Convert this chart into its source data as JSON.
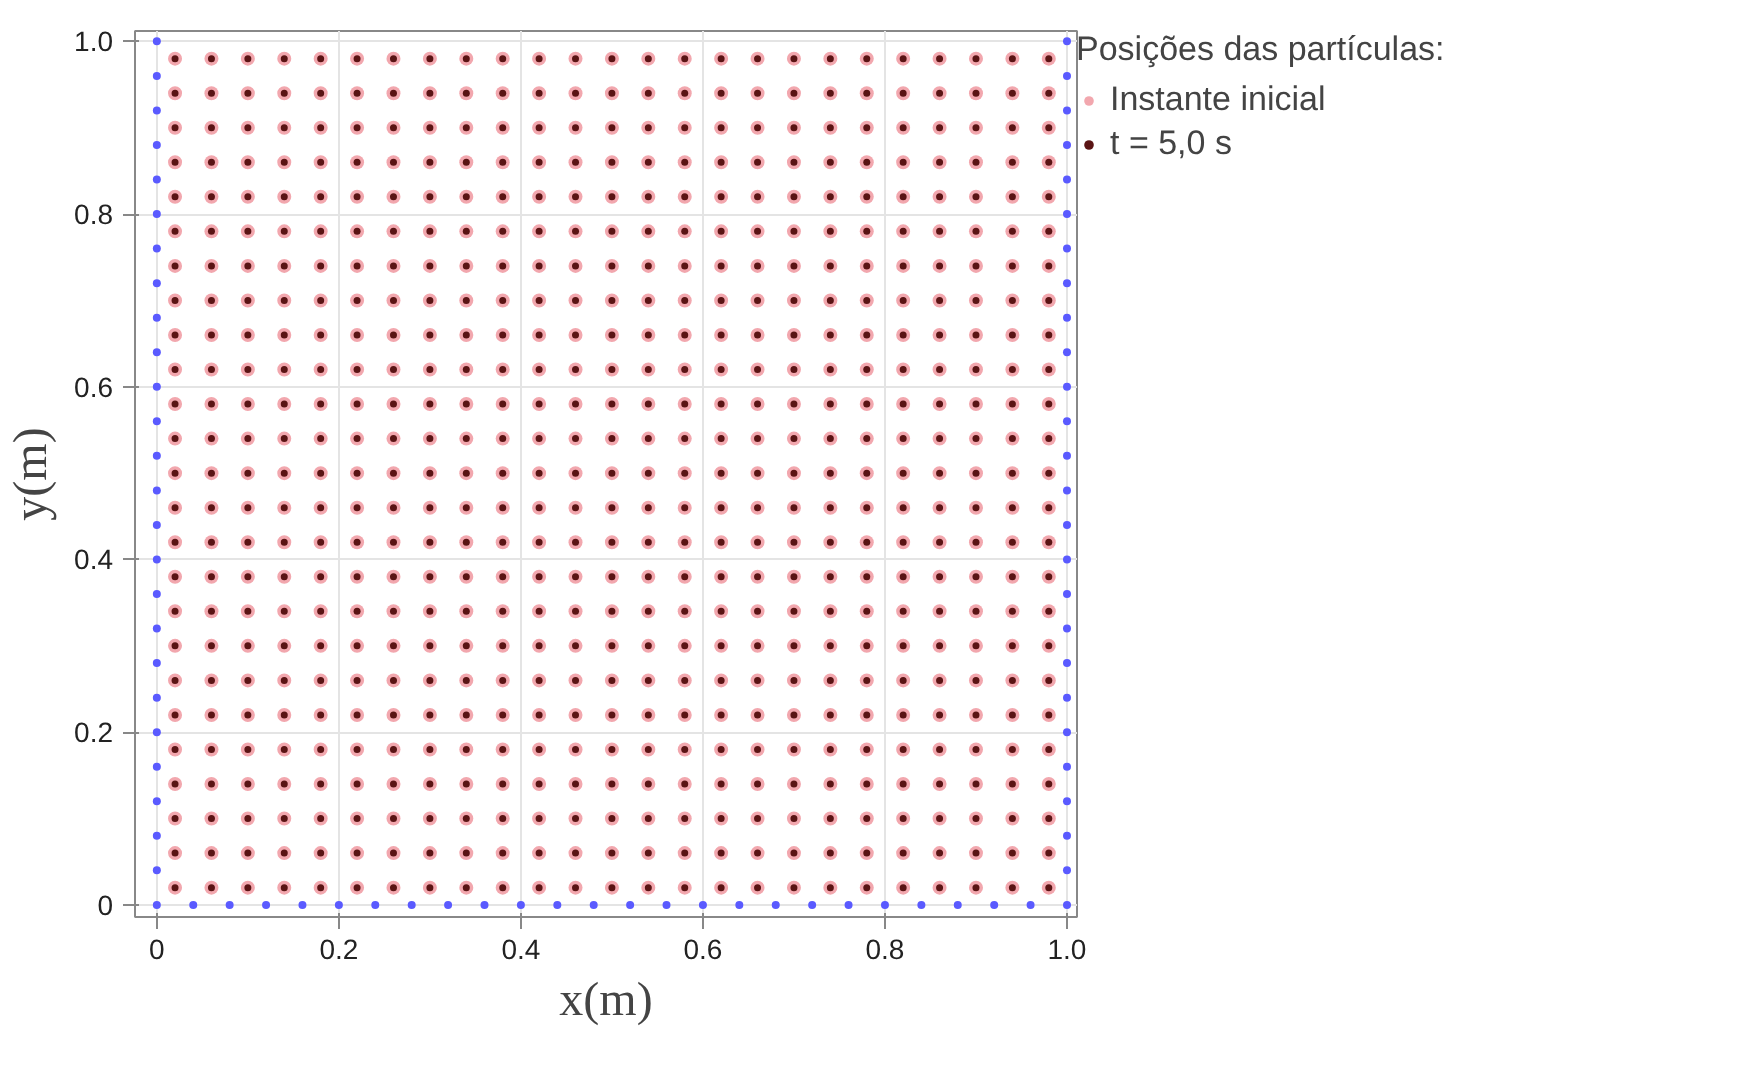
{
  "chart_data": {
    "type": "scatter",
    "xlabel": "x(m)",
    "ylabel": "y(m)",
    "legend_title": "Posições das partículas:",
    "legend": "top right",
    "grid": true,
    "marker": "circle",
    "xlim": [
      -0.024,
      1.011
    ],
    "ylim": [
      -0.014,
      1.012
    ],
    "xticks": [
      0,
      0.2,
      0.4,
      0.6,
      0.8,
      {
        "value": 1,
        "label": "1.0"
      }
    ],
    "yticks": [
      0,
      0.2,
      0.4,
      0.6,
      0.8,
      {
        "value": 1,
        "label": "1.0"
      }
    ],
    "x": [
      0.02,
      0.06,
      0.1,
      0.14,
      0.18,
      0.22,
      0.26,
      0.3,
      0.34,
      0.38,
      0.42,
      0.46,
      0.5,
      0.54,
      0.58,
      0.62,
      0.66,
      0.7,
      0.74,
      0.78,
      0.82,
      0.86,
      0.9,
      0.94,
      0.98,
      0.02,
      0.06,
      0.1,
      0.14,
      0.18,
      0.22,
      0.26,
      0.3,
      0.34,
      0.38,
      0.42,
      0.46,
      0.5,
      0.54,
      0.58,
      0.62,
      0.66,
      0.7,
      0.74,
      0.78,
      0.82,
      0.86,
      0.9,
      0.94,
      0.98,
      0.02,
      0.06,
      0.1,
      0.14,
      0.18,
      0.22,
      0.26,
      0.3,
      0.34,
      0.38,
      0.42,
      0.46,
      0.5,
      0.54,
      0.58,
      0.62,
      0.66,
      0.7,
      0.74,
      0.78,
      0.82,
      0.86,
      0.9,
      0.94,
      0.98,
      0.02,
      0.06,
      0.1,
      0.14,
      0.18,
      0.22,
      0.26,
      0.3,
      0.34,
      0.38,
      0.42,
      0.46,
      0.5,
      0.54,
      0.58,
      0.62,
      0.66,
      0.7,
      0.74,
      0.78,
      0.82,
      0.86,
      0.9,
      0.94,
      0.98,
      0.02,
      0.06,
      0.1,
      0.14,
      0.18,
      0.22,
      0.26,
      0.3,
      0.34,
      0.38,
      0.42,
      0.46,
      0.5,
      0.54,
      0.58,
      0.62,
      0.66,
      0.7,
      0.74,
      0.78,
      0.82,
      0.86,
      0.9,
      0.94,
      0.98,
      0.02,
      0.06,
      0.1,
      0.14,
      0.18,
      0.22,
      0.26,
      0.3,
      0.34,
      0.38,
      0.42,
      0.46,
      0.5,
      0.54,
      0.58,
      0.62,
      0.66,
      0.7,
      0.74,
      0.78,
      0.82,
      0.86,
      0.9,
      0.94,
      0.98,
      0.02,
      0.06,
      0.1,
      0.14,
      0.18,
      0.22,
      0.26,
      0.3,
      0.34,
      0.38,
      0.42,
      0.46,
      0.5,
      0.54,
      0.58,
      0.62,
      0.66,
      0.7,
      0.74,
      0.78,
      0.82,
      0.86,
      0.9,
      0.94,
      0.98,
      0.02,
      0.06,
      0.1,
      0.14,
      0.18,
      0.22,
      0.26,
      0.3,
      0.34,
      0.38,
      0.42,
      0.46,
      0.5,
      0.54,
      0.58,
      0.62,
      0.66,
      0.7,
      0.74,
      0.78,
      0.82,
      0.86,
      0.9,
      0.94,
      0.98,
      0.02,
      0.06,
      0.1,
      0.14,
      0.18,
      0.22,
      0.26,
      0.3,
      0.34,
      0.38,
      0.42,
      0.46,
      0.5,
      0.54,
      0.58,
      0.62,
      0.66,
      0.7,
      0.74,
      0.78,
      0.82,
      0.86,
      0.9,
      0.94,
      0.98,
      0.02,
      0.06,
      0.1,
      0.14,
      0.18,
      0.22,
      0.26,
      0.3,
      0.34,
      0.38,
      0.42,
      0.46,
      0.5,
      0.54,
      0.58,
      0.62,
      0.66,
      0.7,
      0.74,
      0.78,
      0.82,
      0.86,
      0.9,
      0.94,
      0.98,
      0.02,
      0.06,
      0.1,
      0.14,
      0.18,
      0.22,
      0.26,
      0.3,
      0.34,
      0.38,
      0.42,
      0.46,
      0.5,
      0.54,
      0.58,
      0.62,
      0.66,
      0.7,
      0.74,
      0.78,
      0.82,
      0.86,
      0.9,
      0.94,
      0.98,
      0.02,
      0.06,
      0.1,
      0.14,
      0.18,
      0.22,
      0.26,
      0.3,
      0.34,
      0.38,
      0.42,
      0.46,
      0.5,
      0.54,
      0.58,
      0.62,
      0.66,
      0.7,
      0.74,
      0.78,
      0.82,
      0.86,
      0.9,
      0.94,
      0.98,
      0.02,
      0.06,
      0.1,
      0.14,
      0.18,
      0.22,
      0.26,
      0.3,
      0.34,
      0.38,
      0.42,
      0.46,
      0.5,
      0.54,
      0.58,
      0.62,
      0.66,
      0.7,
      0.74,
      0.78,
      0.82,
      0.86,
      0.9,
      0.94,
      0.98,
      0.02,
      0.06,
      0.1,
      0.14,
      0.18,
      0.22,
      0.26,
      0.3,
      0.34,
      0.38,
      0.42,
      0.46,
      0.5,
      0.54,
      0.58,
      0.62,
      0.66,
      0.7,
      0.74,
      0.78,
      0.82,
      0.86,
      0.9,
      0.94,
      0.98,
      0.02,
      0.06,
      0.1,
      0.14,
      0.18,
      0.22,
      0.26,
      0.3,
      0.34,
      0.38,
      0.42,
      0.46,
      0.5,
      0.54,
      0.58,
      0.62,
      0.66,
      0.7,
      0.74,
      0.78,
      0.82,
      0.86,
      0.9,
      0.94,
      0.98,
      0.02,
      0.06,
      0.1,
      0.14,
      0.18,
      0.22,
      0.26,
      0.3,
      0.34,
      0.38,
      0.42,
      0.46,
      0.5,
      0.54,
      0.58,
      0.62,
      0.66,
      0.7,
      0.74,
      0.78,
      0.82,
      0.86,
      0.9,
      0.94,
      0.98,
      0.02,
      0.06,
      0.1,
      0.14,
      0.18,
      0.22,
      0.26,
      0.3,
      0.34,
      0.38,
      0.42,
      0.46,
      0.5,
      0.54,
      0.58,
      0.62,
      0.66,
      0.7,
      0.74,
      0.78,
      0.82,
      0.86,
      0.9,
      0.94,
      0.98,
      0.02,
      0.06,
      0.1,
      0.14,
      0.18,
      0.22,
      0.26,
      0.3,
      0.34,
      0.38,
      0.42,
      0.46,
      0.5,
      0.54,
      0.58,
      0.62,
      0.66,
      0.7,
      0.74,
      0.78,
      0.82,
      0.86,
      0.9,
      0.94,
      0.98,
      0.02,
      0.06,
      0.1,
      0.14,
      0.18,
      0.22,
      0.26,
      0.3,
      0.34,
      0.38,
      0.42,
      0.46,
      0.5,
      0.54,
      0.58,
      0.62,
      0.66,
      0.7,
      0.74,
      0.78,
      0.82,
      0.86,
      0.9,
      0.94,
      0.98,
      0.02,
      0.06,
      0.1,
      0.14,
      0.18,
      0.22,
      0.26,
      0.3,
      0.34,
      0.38,
      0.42,
      0.46,
      0.5,
      0.54,
      0.58,
      0.62,
      0.66,
      0.7,
      0.74,
      0.78,
      0.82,
      0.86,
      0.9,
      0.94,
      0.98,
      0.02,
      0.06,
      0.1,
      0.14,
      0.18,
      0.22,
      0.26,
      0.3,
      0.34,
      0.38,
      0.42,
      0.46,
      0.5,
      0.54,
      0.58,
      0.62,
      0.66,
      0.7,
      0.74,
      0.78,
      0.82,
      0.86,
      0.9,
      0.94,
      0.98,
      0.02,
      0.06,
      0.1,
      0.14,
      0.18,
      0.22,
      0.26,
      0.3,
      0.34,
      0.38,
      0.42,
      0.46,
      0.5,
      0.54,
      0.58,
      0.62,
      0.66,
      0.7,
      0.74,
      0.78,
      0.82,
      0.86,
      0.9,
      0.94,
      0.98,
      0.02,
      0.06,
      0.1,
      0.14,
      0.18,
      0.22,
      0.26,
      0.3,
      0.34,
      0.38,
      0.42,
      0.46,
      0.5,
      0.54,
      0.58,
      0.62,
      0.66,
      0.7,
      0.74,
      0.78,
      0.82,
      0.86,
      0.9,
      0.94,
      0.98,
      0.02,
      0.06,
      0.1,
      0.14,
      0.18,
      0.22,
      0.26,
      0.3,
      0.34,
      0.38,
      0.42,
      0.46,
      0.5,
      0.54,
      0.58,
      0.62,
      0.66,
      0.7,
      0.74,
      0.78,
      0.82,
      0.86,
      0.9,
      0.94,
      0.98,
      0.02,
      0.06,
      0.1,
      0.14,
      0.18,
      0.22,
      0.26,
      0.3,
      0.34,
      0.38,
      0.42,
      0.46,
      0.5,
      0.54,
      0.58,
      0.62,
      0.66,
      0.7,
      0.74,
      0.78,
      0.82,
      0.86,
      0.9,
      0.94,
      0.98
    ],
    "series": [
      {
        "name": "Instante inicial",
        "color": "#f2a7ae",
        "values": [
          0.02,
          0.02,
          0.02,
          0.02,
          0.02,
          0.02,
          0.02,
          0.02,
          0.02,
          0.02,
          0.02,
          0.02,
          0.02,
          0.02,
          0.02,
          0.02,
          0.02,
          0.02,
          0.02,
          0.02,
          0.02,
          0.02,
          0.02,
          0.02,
          0.02,
          0.06,
          0.06,
          0.06,
          0.06,
          0.06,
          0.06,
          0.06,
          0.06,
          0.06,
          0.06,
          0.06,
          0.06,
          0.06,
          0.06,
          0.06,
          0.06,
          0.06,
          0.06,
          0.06,
          0.06,
          0.06,
          0.06,
          0.06,
          0.06,
          0.06,
          0.1,
          0.1,
          0.1,
          0.1,
          0.1,
          0.1,
          0.1,
          0.1,
          0.1,
          0.1,
          0.1,
          0.1,
          0.1,
          0.1,
          0.1,
          0.1,
          0.1,
          0.1,
          0.1,
          0.1,
          0.1,
          0.1,
          0.1,
          0.1,
          0.1,
          0.14,
          0.14,
          0.14,
          0.14,
          0.14,
          0.14,
          0.14,
          0.14,
          0.14,
          0.14,
          0.14,
          0.14,
          0.14,
          0.14,
          0.14,
          0.14,
          0.14,
          0.14,
          0.14,
          0.14,
          0.14,
          0.14,
          0.14,
          0.14,
          0.14,
          0.18,
          0.18,
          0.18,
          0.18,
          0.18,
          0.18,
          0.18,
          0.18,
          0.18,
          0.18,
          0.18,
          0.18,
          0.18,
          0.18,
          0.18,
          0.18,
          0.18,
          0.18,
          0.18,
          0.18,
          0.18,
          0.18,
          0.18,
          0.18,
          0.18,
          0.22,
          0.22,
          0.22,
          0.22,
          0.22,
          0.22,
          0.22,
          0.22,
          0.22,
          0.22,
          0.22,
          0.22,
          0.22,
          0.22,
          0.22,
          0.22,
          0.22,
          0.22,
          0.22,
          0.22,
          0.22,
          0.22,
          0.22,
          0.22,
          0.22,
          0.26,
          0.26,
          0.26,
          0.26,
          0.26,
          0.26,
          0.26,
          0.26,
          0.26,
          0.26,
          0.26,
          0.26,
          0.26,
          0.26,
          0.26,
          0.26,
          0.26,
          0.26,
          0.26,
          0.26,
          0.26,
          0.26,
          0.26,
          0.26,
          0.26,
          0.3,
          0.3,
          0.3,
          0.3,
          0.3,
          0.3,
          0.3,
          0.3,
          0.3,
          0.3,
          0.3,
          0.3,
          0.3,
          0.3,
          0.3,
          0.3,
          0.3,
          0.3,
          0.3,
          0.3,
          0.3,
          0.3,
          0.3,
          0.3,
          0.3,
          0.34,
          0.34,
          0.34,
          0.34,
          0.34,
          0.34,
          0.34,
          0.34,
          0.34,
          0.34,
          0.34,
          0.34,
          0.34,
          0.34,
          0.34,
          0.34,
          0.34,
          0.34,
          0.34,
          0.34,
          0.34,
          0.34,
          0.34,
          0.34,
          0.34,
          0.38,
          0.38,
          0.38,
          0.38,
          0.38,
          0.38,
          0.38,
          0.38,
          0.38,
          0.38,
          0.38,
          0.38,
          0.38,
          0.38,
          0.38,
          0.38,
          0.38,
          0.38,
          0.38,
          0.38,
          0.38,
          0.38,
          0.38,
          0.38,
          0.38,
          0.42,
          0.42,
          0.42,
          0.42,
          0.42,
          0.42,
          0.42,
          0.42,
          0.42,
          0.42,
          0.42,
          0.42,
          0.42,
          0.42,
          0.42,
          0.42,
          0.42,
          0.42,
          0.42,
          0.42,
          0.42,
          0.42,
          0.42,
          0.42,
          0.42,
          0.46,
          0.46,
          0.46,
          0.46,
          0.46,
          0.46,
          0.46,
          0.46,
          0.46,
          0.46,
          0.46,
          0.46,
          0.46,
          0.46,
          0.46,
          0.46,
          0.46,
          0.46,
          0.46,
          0.46,
          0.46,
          0.46,
          0.46,
          0.46,
          0.46,
          0.5,
          0.5,
          0.5,
          0.5,
          0.5,
          0.5,
          0.5,
          0.5,
          0.5,
          0.5,
          0.5,
          0.5,
          0.5,
          0.5,
          0.5,
          0.5,
          0.5,
          0.5,
          0.5,
          0.5,
          0.5,
          0.5,
          0.5,
          0.5,
          0.5,
          0.54,
          0.54,
          0.54,
          0.54,
          0.54,
          0.54,
          0.54,
          0.54,
          0.54,
          0.54,
          0.54,
          0.54,
          0.54,
          0.54,
          0.54,
          0.54,
          0.54,
          0.54,
          0.54,
          0.54,
          0.54,
          0.54,
          0.54,
          0.54,
          0.54,
          0.58,
          0.58,
          0.58,
          0.58,
          0.58,
          0.58,
          0.58,
          0.58,
          0.58,
          0.58,
          0.58,
          0.58,
          0.58,
          0.58,
          0.58,
          0.58,
          0.58,
          0.58,
          0.58,
          0.58,
          0.58,
          0.58,
          0.58,
          0.58,
          0.58,
          0.62,
          0.62,
          0.62,
          0.62,
          0.62,
          0.62,
          0.62,
          0.62,
          0.62,
          0.62,
          0.62,
          0.62,
          0.62,
          0.62,
          0.62,
          0.62,
          0.62,
          0.62,
          0.62,
          0.62,
          0.62,
          0.62,
          0.62,
          0.62,
          0.62,
          0.66,
          0.66,
          0.66,
          0.66,
          0.66,
          0.66,
          0.66,
          0.66,
          0.66,
          0.66,
          0.66,
          0.66,
          0.66,
          0.66,
          0.66,
          0.66,
          0.66,
          0.66,
          0.66,
          0.66,
          0.66,
          0.66,
          0.66,
          0.66,
          0.66,
          0.7,
          0.7,
          0.7,
          0.7,
          0.7,
          0.7,
          0.7,
          0.7,
          0.7,
          0.7,
          0.7,
          0.7,
          0.7,
          0.7,
          0.7,
          0.7,
          0.7,
          0.7,
          0.7,
          0.7,
          0.7,
          0.7,
          0.7,
          0.7,
          0.7,
          0.74,
          0.74,
          0.74,
          0.74,
          0.74,
          0.74,
          0.74,
          0.74,
          0.74,
          0.74,
          0.74,
          0.74,
          0.74,
          0.74,
          0.74,
          0.74,
          0.74,
          0.74,
          0.74,
          0.74,
          0.74,
          0.74,
          0.74,
          0.74,
          0.74,
          0.78,
          0.78,
          0.78,
          0.78,
          0.78,
          0.78,
          0.78,
          0.78,
          0.78,
          0.78,
          0.78,
          0.78,
          0.78,
          0.78,
          0.78,
          0.78,
          0.78,
          0.78,
          0.78,
          0.78,
          0.78,
          0.78,
          0.78,
          0.78,
          0.78,
          0.82,
          0.82,
          0.82,
          0.82,
          0.82,
          0.82,
          0.82,
          0.82,
          0.82,
          0.82,
          0.82,
          0.82,
          0.82,
          0.82,
          0.82,
          0.82,
          0.82,
          0.82,
          0.82,
          0.82,
          0.82,
          0.82,
          0.82,
          0.82,
          0.82,
          0.86,
          0.86,
          0.86,
          0.86,
          0.86,
          0.86,
          0.86,
          0.86,
          0.86,
          0.86,
          0.86,
          0.86,
          0.86,
          0.86,
          0.86,
          0.86,
          0.86,
          0.86,
          0.86,
          0.86,
          0.86,
          0.86,
          0.86,
          0.86,
          0.86,
          0.9,
          0.9,
          0.9,
          0.9,
          0.9,
          0.9,
          0.9,
          0.9,
          0.9,
          0.9,
          0.9,
          0.9,
          0.9,
          0.9,
          0.9,
          0.9,
          0.9,
          0.9,
          0.9,
          0.9,
          0.9,
          0.9,
          0.9,
          0.9,
          0.9,
          0.94,
          0.94,
          0.94,
          0.94,
          0.94,
          0.94,
          0.94,
          0.94,
          0.94,
          0.94,
          0.94,
          0.94,
          0.94,
          0.94,
          0.94,
          0.94,
          0.94,
          0.94,
          0.94,
          0.94,
          0.94,
          0.94,
          0.94,
          0.94,
          0.94,
          0.98,
          0.98,
          0.98,
          0.98,
          0.98,
          0.98,
          0.98,
          0.98,
          0.98,
          0.98,
          0.98,
          0.98,
          0.98,
          0.98,
          0.98,
          0.98,
          0.98,
          0.98,
          0.98,
          0.98,
          0.98,
          0.98,
          0.98,
          0.98,
          0.98
        ]
      },
      {
        "name": "t = 5,0 s",
        "color": "#5a1414",
        "values": [
          0.02,
          0.02,
          0.02,
          0.02,
          0.02,
          0.02,
          0.02,
          0.02,
          0.02,
          0.02,
          0.02,
          0.02,
          0.02,
          0.02,
          0.02,
          0.02,
          0.02,
          0.02,
          0.02,
          0.02,
          0.02,
          0.02,
          0.02,
          0.02,
          0.02,
          0.06,
          0.06,
          0.06,
          0.06,
          0.06,
          0.06,
          0.06,
          0.06,
          0.06,
          0.06,
          0.06,
          0.06,
          0.06,
          0.06,
          0.06,
          0.06,
          0.06,
          0.06,
          0.06,
          0.06,
          0.06,
          0.06,
          0.06,
          0.06,
          0.06,
          0.1,
          0.1,
          0.1,
          0.1,
          0.1,
          0.1,
          0.1,
          0.1,
          0.1,
          0.1,
          0.1,
          0.1,
          0.1,
          0.1,
          0.1,
          0.1,
          0.1,
          0.1,
          0.1,
          0.1,
          0.1,
          0.1,
          0.1,
          0.1,
          0.1,
          0.14,
          0.14,
          0.14,
          0.14,
          0.14,
          0.14,
          0.14,
          0.14,
          0.14,
          0.14,
          0.14,
          0.14,
          0.14,
          0.14,
          0.14,
          0.14,
          0.14,
          0.14,
          0.14,
          0.14,
          0.14,
          0.14,
          0.14,
          0.14,
          0.14,
          0.18,
          0.18,
          0.18,
          0.18,
          0.18,
          0.18,
          0.18,
          0.18,
          0.18,
          0.18,
          0.18,
          0.18,
          0.18,
          0.18,
          0.18,
          0.18,
          0.18,
          0.18,
          0.18,
          0.18,
          0.18,
          0.18,
          0.18,
          0.18,
          0.18,
          0.22,
          0.22,
          0.22,
          0.22,
          0.22,
          0.22,
          0.22,
          0.22,
          0.22,
          0.22,
          0.22,
          0.22,
          0.22,
          0.22,
          0.22,
          0.22,
          0.22,
          0.22,
          0.22,
          0.22,
          0.22,
          0.22,
          0.22,
          0.22,
          0.22,
          0.26,
          0.26,
          0.26,
          0.26,
          0.26,
          0.26,
          0.26,
          0.26,
          0.26,
          0.26,
          0.26,
          0.26,
          0.26,
          0.26,
          0.26,
          0.26,
          0.26,
          0.26,
          0.26,
          0.26,
          0.26,
          0.26,
          0.26,
          0.26,
          0.26,
          0.3,
          0.3,
          0.3,
          0.3,
          0.3,
          0.3,
          0.3,
          0.3,
          0.3,
          0.3,
          0.3,
          0.3,
          0.3,
          0.3,
          0.3,
          0.3,
          0.3,
          0.3,
          0.3,
          0.3,
          0.3,
          0.3,
          0.3,
          0.3,
          0.3,
          0.34,
          0.34,
          0.34,
          0.34,
          0.34,
          0.34,
          0.34,
          0.34,
          0.34,
          0.34,
          0.34,
          0.34,
          0.34,
          0.34,
          0.34,
          0.34,
          0.34,
          0.34,
          0.34,
          0.34,
          0.34,
          0.34,
          0.34,
          0.34,
          0.34,
          0.38,
          0.38,
          0.38,
          0.38,
          0.38,
          0.38,
          0.38,
          0.38,
          0.38,
          0.38,
          0.38,
          0.38,
          0.38,
          0.38,
          0.38,
          0.38,
          0.38,
          0.38,
          0.38,
          0.38,
          0.38,
          0.38,
          0.38,
          0.38,
          0.38,
          0.42,
          0.42,
          0.42,
          0.42,
          0.42,
          0.42,
          0.42,
          0.42,
          0.42,
          0.42,
          0.42,
          0.42,
          0.42,
          0.42,
          0.42,
          0.42,
          0.42,
          0.42,
          0.42,
          0.42,
          0.42,
          0.42,
          0.42,
          0.42,
          0.42,
          0.46,
          0.46,
          0.46,
          0.46,
          0.46,
          0.46,
          0.46,
          0.46,
          0.46,
          0.46,
          0.46,
          0.46,
          0.46,
          0.46,
          0.46,
          0.46,
          0.46,
          0.46,
          0.46,
          0.46,
          0.46,
          0.46,
          0.46,
          0.46,
          0.46,
          0.5,
          0.5,
          0.5,
          0.5,
          0.5,
          0.5,
          0.5,
          0.5,
          0.5,
          0.5,
          0.5,
          0.5,
          0.5,
          0.5,
          0.5,
          0.5,
          0.5,
          0.5,
          0.5,
          0.5,
          0.5,
          0.5,
          0.5,
          0.5,
          0.5,
          0.54,
          0.54,
          0.54,
          0.54,
          0.54,
          0.54,
          0.54,
          0.54,
          0.54,
          0.54,
          0.54,
          0.54,
          0.54,
          0.54,
          0.54,
          0.54,
          0.54,
          0.54,
          0.54,
          0.54,
          0.54,
          0.54,
          0.54,
          0.54,
          0.54,
          0.58,
          0.58,
          0.58,
          0.58,
          0.58,
          0.58,
          0.58,
          0.58,
          0.58,
          0.58,
          0.58,
          0.58,
          0.58,
          0.58,
          0.58,
          0.58,
          0.58,
          0.58,
          0.58,
          0.58,
          0.58,
          0.58,
          0.58,
          0.58,
          0.58,
          0.62,
          0.62,
          0.62,
          0.62,
          0.62,
          0.62,
          0.62,
          0.62,
          0.62,
          0.62,
          0.62,
          0.62,
          0.62,
          0.62,
          0.62,
          0.62,
          0.62,
          0.62,
          0.62,
          0.62,
          0.62,
          0.62,
          0.62,
          0.62,
          0.62,
          0.66,
          0.66,
          0.66,
          0.66,
          0.66,
          0.66,
          0.66,
          0.66,
          0.66,
          0.66,
          0.66,
          0.66,
          0.66,
          0.66,
          0.66,
          0.66,
          0.66,
          0.66,
          0.66,
          0.66,
          0.66,
          0.66,
          0.66,
          0.66,
          0.66,
          0.7,
          0.7,
          0.7,
          0.7,
          0.7,
          0.7,
          0.7,
          0.7,
          0.7,
          0.7,
          0.7,
          0.7,
          0.7,
          0.7,
          0.7,
          0.7,
          0.7,
          0.7,
          0.7,
          0.7,
          0.7,
          0.7,
          0.7,
          0.7,
          0.7,
          0.74,
          0.74,
          0.74,
          0.74,
          0.74,
          0.74,
          0.74,
          0.74,
          0.74,
          0.74,
          0.74,
          0.74,
          0.74,
          0.74,
          0.74,
          0.74,
          0.74,
          0.74,
          0.74,
          0.74,
          0.74,
          0.74,
          0.74,
          0.74,
          0.74,
          0.78,
          0.78,
          0.78,
          0.78,
          0.78,
          0.78,
          0.78,
          0.78,
          0.78,
          0.78,
          0.78,
          0.78,
          0.78,
          0.78,
          0.78,
          0.78,
          0.78,
          0.78,
          0.78,
          0.78,
          0.78,
          0.78,
          0.78,
          0.78,
          0.78,
          0.82,
          0.82,
          0.82,
          0.82,
          0.82,
          0.82,
          0.82,
          0.82,
          0.82,
          0.82,
          0.82,
          0.82,
          0.82,
          0.82,
          0.82,
          0.82,
          0.82,
          0.82,
          0.82,
          0.82,
          0.82,
          0.82,
          0.82,
          0.82,
          0.82,
          0.86,
          0.86,
          0.86,
          0.86,
          0.86,
          0.86,
          0.86,
          0.86,
          0.86,
          0.86,
          0.86,
          0.86,
          0.86,
          0.86,
          0.86,
          0.86,
          0.86,
          0.86,
          0.86,
          0.86,
          0.86,
          0.86,
          0.86,
          0.86,
          0.86,
          0.9,
          0.9,
          0.9,
          0.9,
          0.9,
          0.9,
          0.9,
          0.9,
          0.9,
          0.9,
          0.9,
          0.9,
          0.9,
          0.9,
          0.9,
          0.9,
          0.9,
          0.9,
          0.9,
          0.9,
          0.9,
          0.9,
          0.9,
          0.9,
          0.9,
          0.94,
          0.94,
          0.94,
          0.94,
          0.94,
          0.94,
          0.94,
          0.94,
          0.94,
          0.94,
          0.94,
          0.94,
          0.94,
          0.94,
          0.94,
          0.94,
          0.94,
          0.94,
          0.94,
          0.94,
          0.94,
          0.94,
          0.94,
          0.94,
          0.94,
          0.98,
          0.98,
          0.98,
          0.98,
          0.98,
          0.98,
          0.98,
          0.98,
          0.98,
          0.98,
          0.98,
          0.98,
          0.98,
          0.98,
          0.98,
          0.98,
          0.98,
          0.98,
          0.98,
          0.98,
          0.98,
          0.98,
          0.98,
          0.98,
          0.98
        ]
      },
      {
        "color": "#5a5aff",
        "x": [
          0,
          0,
          0,
          0,
          0,
          0,
          0,
          0,
          0,
          0,
          0,
          0,
          0,
          0,
          0,
          0,
          0,
          0,
          0,
          0,
          0,
          0,
          0,
          0,
          0,
          0,
          1,
          1,
          1,
          1,
          1,
          1,
          1,
          1,
          1,
          1,
          1,
          1,
          1,
          1,
          1,
          1,
          1,
          1,
          1,
          1,
          1,
          1,
          1,
          1,
          1,
          1,
          0.04,
          0.08,
          0.12,
          0.16,
          0.2,
          0.24,
          0.28,
          0.32,
          0.36,
          0.4,
          0.44,
          0.48,
          0.52,
          0.56,
          0.6,
          0.64,
          0.68,
          0.72,
          0.76,
          0.8,
          0.84,
          0.88,
          0.92,
          0.96
        ],
        "values": [
          0,
          0.04,
          0.08,
          0.12,
          0.16,
          0.2,
          0.24,
          0.28,
          0.32,
          0.36,
          0.4,
          0.44,
          0.48,
          0.52,
          0.56,
          0.6,
          0.64,
          0.68,
          0.72,
          0.76,
          0.8,
          0.84,
          0.88,
          0.92,
          0.96,
          1,
          0,
          0.04,
          0.08,
          0.12,
          0.16,
          0.2,
          0.24,
          0.28,
          0.32,
          0.36,
          0.4,
          0.44,
          0.48,
          0.52,
          0.56,
          0.6,
          0.64,
          0.68,
          0.72,
          0.76,
          0.8,
          0.84,
          0.88,
          0.92,
          0.96,
          1,
          0,
          0,
          0,
          0,
          0,
          0,
          0,
          0,
          0,
          0,
          0,
          0,
          0,
          0,
          0,
          0,
          0,
          0,
          0,
          0,
          0,
          0,
          0,
          0
        ]
      }
    ]
  }
}
